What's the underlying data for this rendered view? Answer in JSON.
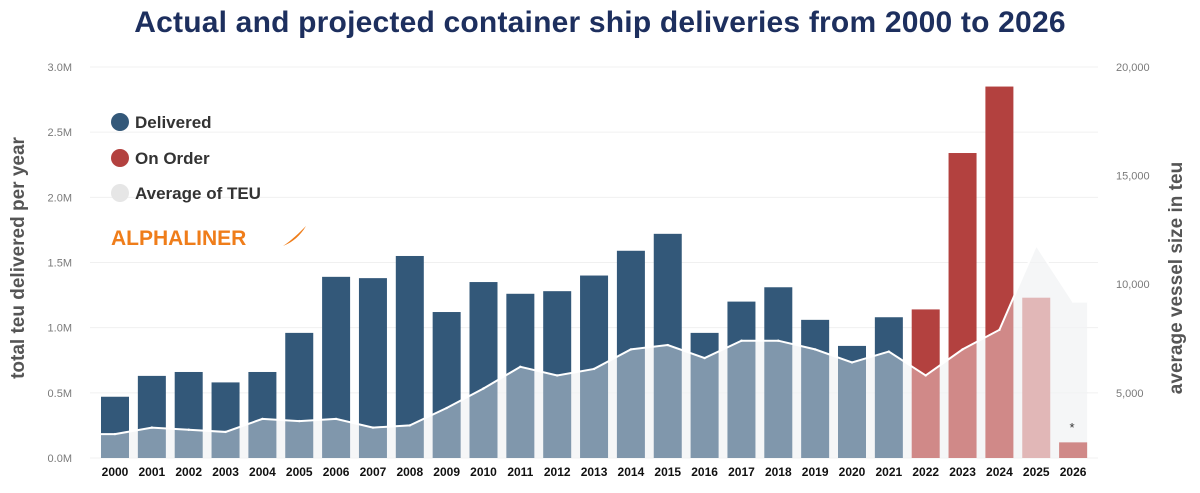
{
  "title": "Actual and projected container ship deliveries from 2000 to 2026",
  "brand": "ALPHALINER",
  "footnote_marker": "*",
  "colors": {
    "delivered": "#335879",
    "on_order": "#b3413f",
    "on_order_light": "#cf8c8c",
    "average_area": "#e2e5ea",
    "average_line": "#ffffff"
  },
  "chart_data": {
    "type": "bar",
    "title": "Actual and projected container ship deliveries from 2000 to 2026",
    "ylabel": "total teu delivered per year",
    "y2label": "average vessel size in teu",
    "ylim": [
      0,
      3000000
    ],
    "y2lim": [
      2000,
      20000
    ],
    "y_ticks": [
      "0.0M",
      "0.5M",
      "1.0M",
      "1.5M",
      "2.0M",
      "2.5M",
      "3.0M"
    ],
    "y2_ticks": [
      "5,000",
      "10,000",
      "15,000",
      "20,000"
    ],
    "categories": [
      "2000",
      "2001",
      "2002",
      "2003",
      "2004",
      "2005",
      "2006",
      "2007",
      "2008",
      "2009",
      "2010",
      "2011",
      "2012",
      "2013",
      "2014",
      "2015",
      "2016",
      "2017",
      "2018",
      "2019",
      "2020",
      "2021",
      "2022",
      "2023",
      "2024",
      "2025",
      "2026"
    ],
    "legend_position": "top-left",
    "legend": [
      "Delivered",
      "On Order",
      "Average of TEU"
    ],
    "series": [
      {
        "name": "Delivered",
        "values": [
          470000,
          630000,
          660000,
          580000,
          660000,
          960000,
          1390000,
          1380000,
          1550000,
          1120000,
          1350000,
          1260000,
          1280000,
          1400000,
          1590000,
          1720000,
          960000,
          1200000,
          1310000,
          1060000,
          860000,
          1080000,
          null,
          null,
          null,
          null,
          null
        ]
      },
      {
        "name": "On Order",
        "values": [
          null,
          null,
          null,
          null,
          null,
          null,
          null,
          null,
          null,
          null,
          null,
          null,
          null,
          null,
          null,
          null,
          null,
          null,
          null,
          null,
          null,
          null,
          1140000,
          2340000,
          2850000,
          1230000,
          120000
        ]
      },
      {
        "name": "Average of TEU",
        "values": [
          3100,
          3400,
          3300,
          3200,
          3800,
          3700,
          3800,
          3400,
          3500,
          4300,
          5200,
          6200,
          5800,
          6100,
          7000,
          7200,
          6600,
          7400,
          7400,
          7000,
          6400,
          6900,
          5800,
          7000,
          7900,
          11800,
          9200
        ]
      }
    ]
  }
}
